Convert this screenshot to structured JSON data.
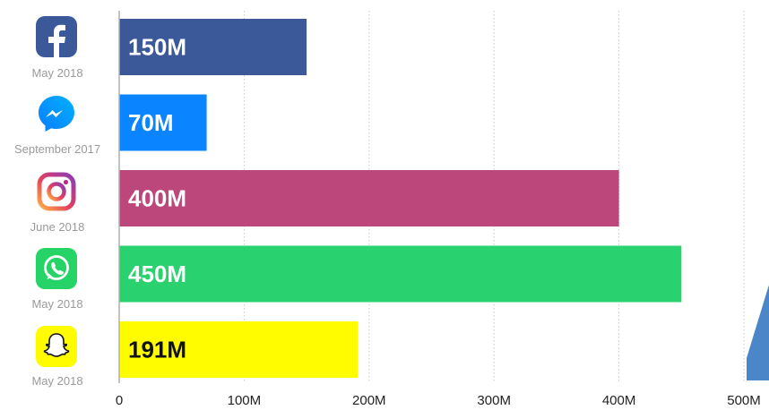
{
  "chart_data": {
    "type": "bar",
    "orientation": "horizontal",
    "categories": [
      "Facebook",
      "Messenger",
      "Instagram",
      "WhatsApp",
      "Snapchat"
    ],
    "category_dates": [
      "May 2018",
      "September 2017",
      "June 2018",
      "May 2018",
      "May 2018"
    ],
    "icons": [
      "facebook-icon",
      "messenger-icon",
      "instagram-icon",
      "whatsapp-icon",
      "snapchat-icon"
    ],
    "values": [
      150,
      70,
      400,
      450,
      191
    ],
    "data_labels": [
      "150M",
      "70M",
      "400M",
      "450M",
      "191M"
    ],
    "bar_colors": [
      "#3b5998",
      "#0a84ff",
      "#bc477a",
      "#2ad16f",
      "#fffc00"
    ],
    "label_colors": [
      "#ffffff",
      "#ffffff",
      "#ffffff",
      "#ffffff",
      "#111111"
    ],
    "xlim": [
      0,
      500
    ],
    "x_ticks": [
      0,
      100,
      200,
      300,
      400,
      500
    ],
    "x_tick_labels": [
      "0",
      "100M",
      "200M",
      "300M",
      "400M",
      "500M"
    ],
    "grid": "vertical dotted",
    "title": "",
    "xlabel": "",
    "ylabel": ""
  }
}
